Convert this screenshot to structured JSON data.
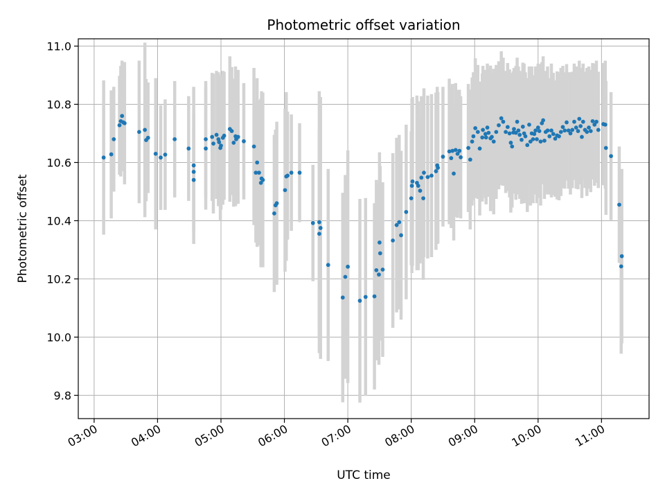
{
  "chart_data": {
    "type": "scatter",
    "title": "Photometric offset variation",
    "xlabel": "UTC time",
    "ylabel": "Photometric offset",
    "x_unit": "hours UTC",
    "xlim": [
      2.75,
      11.75
    ],
    "ylim": [
      9.72,
      11.025
    ],
    "x_ticks": [
      3,
      4,
      5,
      6,
      7,
      8,
      9,
      10,
      11
    ],
    "x_tick_labels": [
      "03:00",
      "04:00",
      "05:00",
      "06:00",
      "07:00",
      "08:00",
      "09:00",
      "10:00",
      "11:00"
    ],
    "y_ticks": [
      9.8,
      10.0,
      10.2,
      10.4,
      10.6,
      10.8,
      11.0
    ],
    "y_tick_labels": [
      "9.8",
      "10.0",
      "10.2",
      "10.4",
      "10.6",
      "10.8",
      "11.0"
    ],
    "grid": true,
    "legend": "none",
    "colors": {
      "points": "#1f77b4",
      "error_bars": "#d3d3d3",
      "grid": "#b0b0b0"
    },
    "series": [
      {
        "points": [
          [
            3.15,
            10.617,
            0.265
          ],
          [
            3.27,
            10.628,
            0.22
          ],
          [
            3.31,
            10.68,
            0.18
          ],
          [
            3.4,
            10.728,
            0.17
          ],
          [
            3.42,
            10.742,
            0.19
          ],
          [
            3.44,
            10.76,
            0.19
          ],
          [
            3.46,
            10.738,
            0.16
          ],
          [
            3.48,
            10.735,
            0.21
          ],
          [
            3.71,
            10.705,
            0.245
          ],
          [
            3.8,
            10.712,
            0.3
          ],
          [
            3.82,
            10.677,
            0.21
          ],
          [
            3.85,
            10.685,
            0.19
          ],
          [
            3.97,
            10.63,
            0.26
          ],
          [
            4.05,
            10.617,
            0.18
          ],
          [
            4.12,
            10.627,
            0.19
          ],
          [
            4.27,
            10.68,
            0.2
          ],
          [
            4.49,
            10.648,
            0.18
          ],
          [
            4.57,
            10.59,
            0.27
          ],
          [
            4.57,
            10.568,
            0.2
          ],
          [
            4.57,
            10.54,
            0.18
          ],
          [
            4.76,
            10.68,
            0.2
          ],
          [
            4.76,
            10.648,
            0.21
          ],
          [
            4.86,
            10.688,
            0.22
          ],
          [
            4.88,
            10.665,
            0.24
          ],
          [
            4.93,
            10.695,
            0.22
          ],
          [
            4.96,
            10.68,
            0.23
          ],
          [
            4.97,
            10.67,
            0.2
          ],
          [
            4.99,
            10.65,
            0.25
          ],
          [
            5.0,
            10.658,
            0.22
          ],
          [
            5.03,
            10.685,
            0.23
          ],
          [
            5.05,
            10.692,
            0.22
          ],
          [
            5.14,
            10.715,
            0.25
          ],
          [
            5.17,
            10.708,
            0.22
          ],
          [
            5.2,
            10.668,
            0.22
          ],
          [
            5.23,
            10.69,
            0.24
          ],
          [
            5.24,
            10.68,
            0.21
          ],
          [
            5.27,
            10.688,
            0.23
          ],
          [
            5.36,
            10.673,
            0.2
          ],
          [
            5.52,
            10.655,
            0.27
          ],
          [
            5.55,
            10.565,
            0.24
          ],
          [
            5.57,
            10.6,
            0.29
          ],
          [
            5.6,
            10.565,
            0.25
          ],
          [
            5.63,
            10.53,
            0.29
          ],
          [
            5.64,
            10.545,
            0.3
          ],
          [
            5.66,
            10.54,
            0.3
          ],
          [
            5.84,
            10.425,
            0.27
          ],
          [
            5.86,
            10.453,
            0.26
          ],
          [
            5.88,
            10.46,
            0.28
          ],
          [
            6.01,
            10.505,
            0.28
          ],
          [
            6.03,
            10.552,
            0.29
          ],
          [
            6.05,
            10.555,
            0.22
          ],
          [
            6.11,
            10.565,
            0.2
          ],
          [
            6.24,
            10.565,
            0.17
          ],
          [
            6.45,
            10.392,
            0.2
          ],
          [
            6.55,
            10.395,
            0.45
          ],
          [
            6.57,
            10.375,
            0.45
          ],
          [
            6.55,
            10.355,
            0.36
          ],
          [
            6.69,
            10.248,
            0.33
          ],
          [
            6.92,
            10.136,
            0.36
          ],
          [
            6.96,
            10.207,
            0.35
          ],
          [
            7.0,
            10.242,
            0.4
          ],
          [
            7.19,
            10.125,
            0.35
          ],
          [
            7.28,
            10.138,
            0.34
          ],
          [
            7.42,
            10.14,
            0.32
          ],
          [
            7.45,
            10.23,
            0.31
          ],
          [
            7.49,
            10.215,
            0.31
          ],
          [
            7.5,
            10.325,
            0.31
          ],
          [
            7.51,
            10.288,
            0.3
          ],
          [
            7.55,
            10.232,
            0.3
          ],
          [
            7.71,
            10.332,
            0.3
          ],
          [
            7.77,
            10.385,
            0.3
          ],
          [
            7.81,
            10.395,
            0.3
          ],
          [
            7.84,
            10.35,
            0.29
          ],
          [
            7.92,
            10.43,
            0.3
          ],
          [
            8.0,
            10.477,
            0.23
          ],
          [
            8.01,
            10.52,
            0.3
          ],
          [
            8.02,
            10.535,
            0.29
          ],
          [
            8.09,
            10.53,
            0.3
          ],
          [
            8.11,
            10.52,
            0.29
          ],
          [
            8.14,
            10.503,
            0.25
          ],
          [
            8.16,
            10.548,
            0.28
          ],
          [
            8.19,
            10.477,
            0.28
          ],
          [
            8.2,
            10.565,
            0.29
          ],
          [
            8.26,
            10.55,
            0.28
          ],
          [
            8.32,
            10.555,
            0.28
          ],
          [
            8.39,
            10.57,
            0.27
          ],
          [
            8.41,
            10.59,
            0.27
          ],
          [
            8.42,
            10.582,
            0.26
          ],
          [
            8.5,
            10.62,
            0.24
          ],
          [
            8.6,
            10.638,
            0.25
          ],
          [
            8.63,
            10.615,
            0.24
          ],
          [
            8.65,
            10.64,
            0.23
          ],
          [
            8.67,
            10.562,
            0.23
          ],
          [
            8.7,
            10.643,
            0.23
          ],
          [
            8.73,
            10.63,
            0.22
          ],
          [
            8.76,
            10.64,
            0.21
          ],
          [
            8.78,
            10.618,
            0.21
          ],
          [
            8.9,
            10.65,
            0.22
          ],
          [
            8.93,
            10.61,
            0.24
          ],
          [
            8.96,
            10.672,
            0.22
          ],
          [
            8.98,
            10.69,
            0.22
          ],
          [
            9.01,
            10.718,
            0.24
          ],
          [
            9.05,
            10.705,
            0.23
          ],
          [
            9.08,
            10.648,
            0.23
          ],
          [
            9.12,
            10.686,
            0.22
          ],
          [
            9.13,
            10.712,
            0.22
          ],
          [
            9.17,
            10.698,
            0.22
          ],
          [
            9.18,
            10.686,
            0.23
          ],
          [
            9.2,
            10.72,
            0.22
          ],
          [
            9.22,
            10.702,
            0.22
          ],
          [
            9.25,
            10.683,
            0.25
          ],
          [
            9.27,
            10.688,
            0.22
          ],
          [
            9.3,
            10.672,
            0.25
          ],
          [
            9.34,
            10.705,
            0.23
          ],
          [
            9.38,
            10.728,
            0.22
          ],
          [
            9.42,
            10.752,
            0.23
          ],
          [
            9.45,
            10.74,
            0.22
          ],
          [
            9.49,
            10.705,
            0.21
          ],
          [
            9.52,
            10.722,
            0.22
          ],
          [
            9.55,
            10.7,
            0.22
          ],
          [
            9.57,
            10.668,
            0.24
          ],
          [
            9.59,
            10.655,
            0.21
          ],
          [
            9.61,
            10.703,
            0.21
          ],
          [
            9.62,
            10.715,
            0.21
          ],
          [
            9.65,
            10.702,
            0.23
          ],
          [
            9.67,
            10.74,
            0.22
          ],
          [
            9.69,
            10.71,
            0.22
          ],
          [
            9.71,
            10.695,
            0.22
          ],
          [
            9.74,
            10.678,
            0.22
          ],
          [
            9.76,
            10.723,
            0.22
          ],
          [
            9.78,
            10.7,
            0.24
          ],
          [
            9.8,
            10.69,
            0.22
          ],
          [
            9.83,
            10.66,
            0.23
          ],
          [
            9.86,
            10.73,
            0.2
          ],
          [
            9.88,
            10.672,
            0.22
          ],
          [
            9.9,
            10.7,
            0.23
          ],
          [
            9.92,
            10.68,
            0.22
          ],
          [
            9.94,
            10.698,
            0.2
          ],
          [
            9.96,
            10.71,
            0.22
          ],
          [
            9.98,
            10.68,
            0.22
          ],
          [
            10.0,
            10.72,
            0.22
          ],
          [
            10.02,
            10.708,
            0.23
          ],
          [
            10.04,
            10.672,
            0.22
          ],
          [
            10.06,
            10.735,
            0.21
          ],
          [
            10.08,
            10.745,
            0.22
          ],
          [
            10.1,
            10.675,
            0.2
          ],
          [
            10.12,
            10.705,
            0.21
          ],
          [
            10.15,
            10.71,
            0.22
          ],
          [
            10.18,
            10.69,
            0.2
          ],
          [
            10.21,
            10.71,
            0.23
          ],
          [
            10.24,
            10.698,
            0.21
          ],
          [
            10.27,
            10.682,
            0.2
          ],
          [
            10.3,
            10.693,
            0.22
          ],
          [
            10.33,
            10.69,
            0.22
          ],
          [
            10.36,
            10.705,
            0.22
          ],
          [
            10.39,
            10.722,
            0.21
          ],
          [
            10.42,
            10.71,
            0.2
          ],
          [
            10.45,
            10.738,
            0.2
          ],
          [
            10.48,
            10.71,
            0.2
          ],
          [
            10.51,
            10.7,
            0.21
          ],
          [
            10.54,
            10.712,
            0.2
          ],
          [
            10.57,
            10.74,
            0.2
          ],
          [
            10.6,
            10.72,
            0.21
          ],
          [
            10.63,
            10.708,
            0.2
          ],
          [
            10.65,
            10.75,
            0.2
          ],
          [
            10.67,
            10.725,
            0.2
          ],
          [
            10.69,
            10.688,
            0.21
          ],
          [
            10.71,
            10.74,
            0.2
          ],
          [
            10.74,
            10.712,
            0.2
          ],
          [
            10.77,
            10.705,
            0.22
          ],
          [
            10.8,
            10.72,
            0.21
          ],
          [
            10.83,
            10.708,
            0.21
          ],
          [
            10.86,
            10.742,
            0.2
          ],
          [
            10.89,
            10.73,
            0.21
          ],
          [
            10.92,
            10.74,
            0.21
          ],
          [
            10.95,
            10.712,
            0.2
          ],
          [
            11.03,
            10.732,
            0.21
          ],
          [
            11.06,
            10.73,
            0.22
          ],
          [
            11.07,
            10.65,
            0.23
          ],
          [
            11.15,
            10.622,
            0.22
          ],
          [
            11.28,
            10.455,
            0.2
          ],
          [
            11.31,
            10.243,
            0.3
          ],
          [
            11.32,
            10.278,
            0.3
          ]
        ]
      }
    ]
  }
}
